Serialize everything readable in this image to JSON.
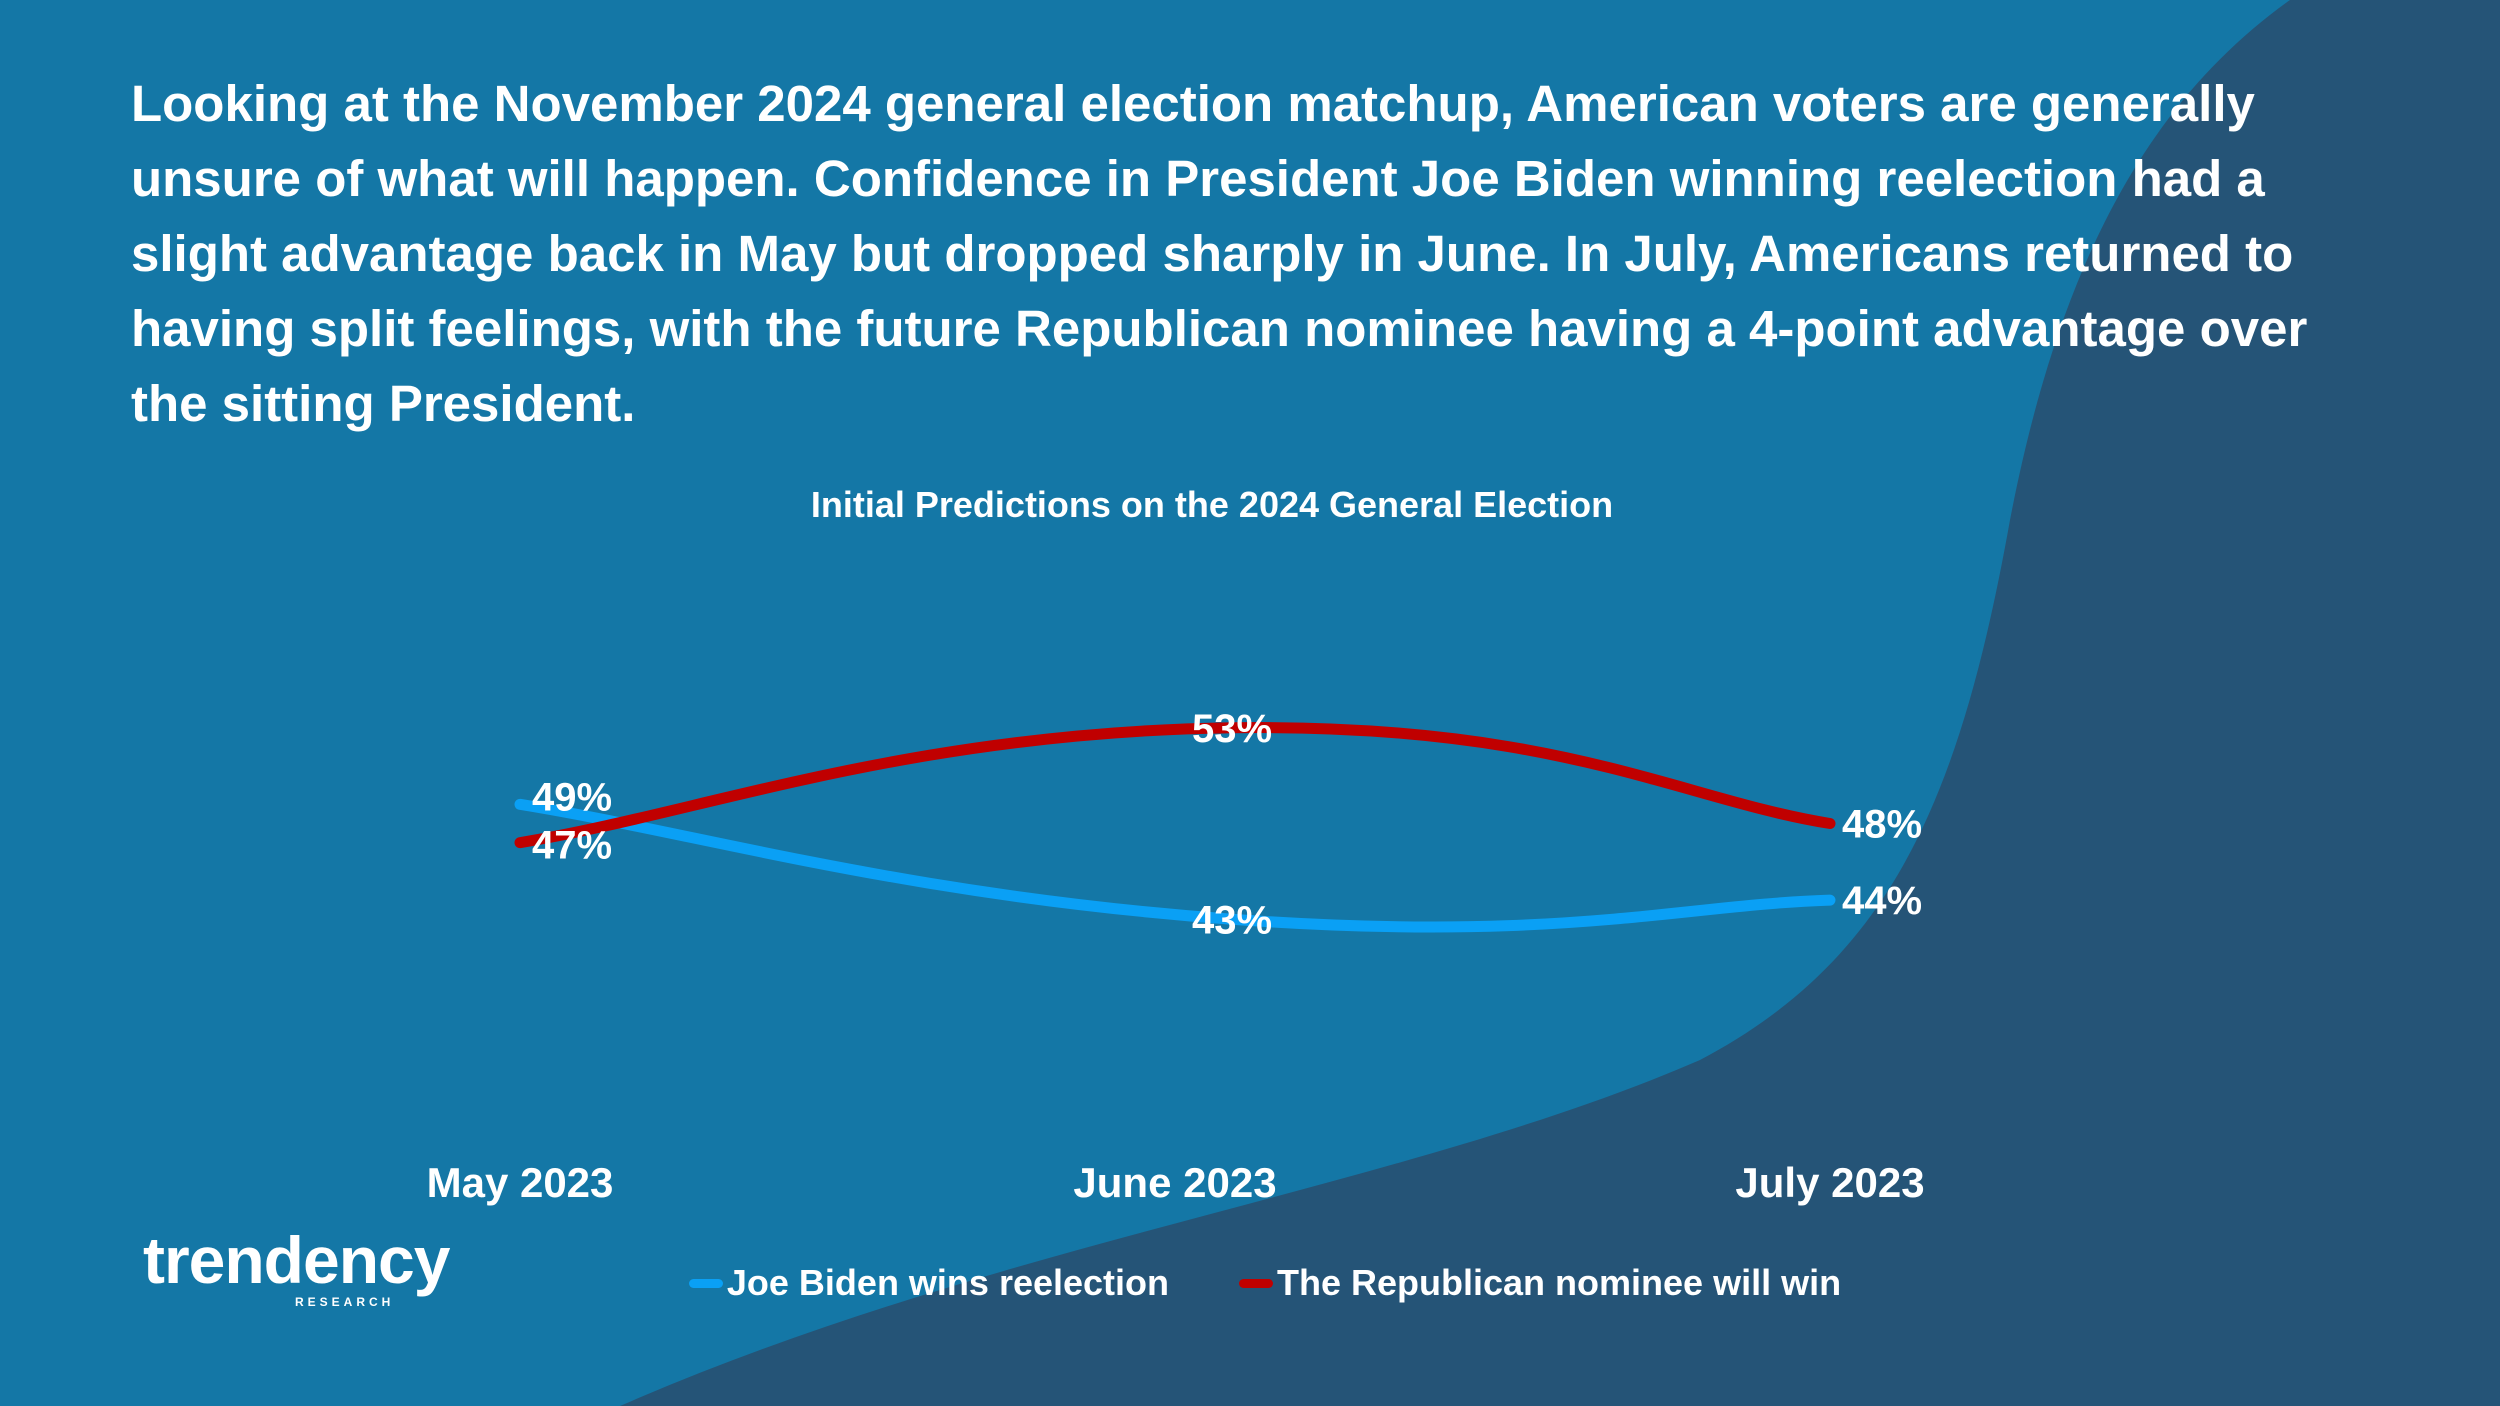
{
  "headline": "Looking at the November 2024 general election matchup, American voters are generally unsure of what will happen. Confidence in President Joe Biden winning reelection had a slight advantage back in May but dropped sharply in June. In July, Americans returned to having split feelings, with the future Republican nominee having a 4-point advantage over the sitting President.",
  "colors": {
    "background": "#1477a6",
    "background_dark": "#255477",
    "biden": "#0aa0f5",
    "republican": "#c00000",
    "text": "#ffffff"
  },
  "chart_data": {
    "type": "line",
    "title": "Initial Predictions on the 2024 General Election",
    "categories": [
      "May 2023",
      "June 2023",
      "July 2023"
    ],
    "series": [
      {
        "name": "Joe Biden wins reelection",
        "values": [
          49,
          43,
          44
        ],
        "labels": [
          "49%",
          "43%",
          "44%"
        ],
        "color": "#0aa0f5"
      },
      {
        "name": "The Republican nominee will win",
        "values": [
          47,
          53,
          48
        ],
        "labels": [
          "47%",
          "53%",
          "48%"
        ],
        "color": "#c00000"
      }
    ],
    "ylim": [
      38,
      58
    ],
    "grid": false,
    "smooth": true,
    "legend": "bottom"
  },
  "logo": {
    "word": "trendency",
    "sub": "RESEARCH"
  }
}
